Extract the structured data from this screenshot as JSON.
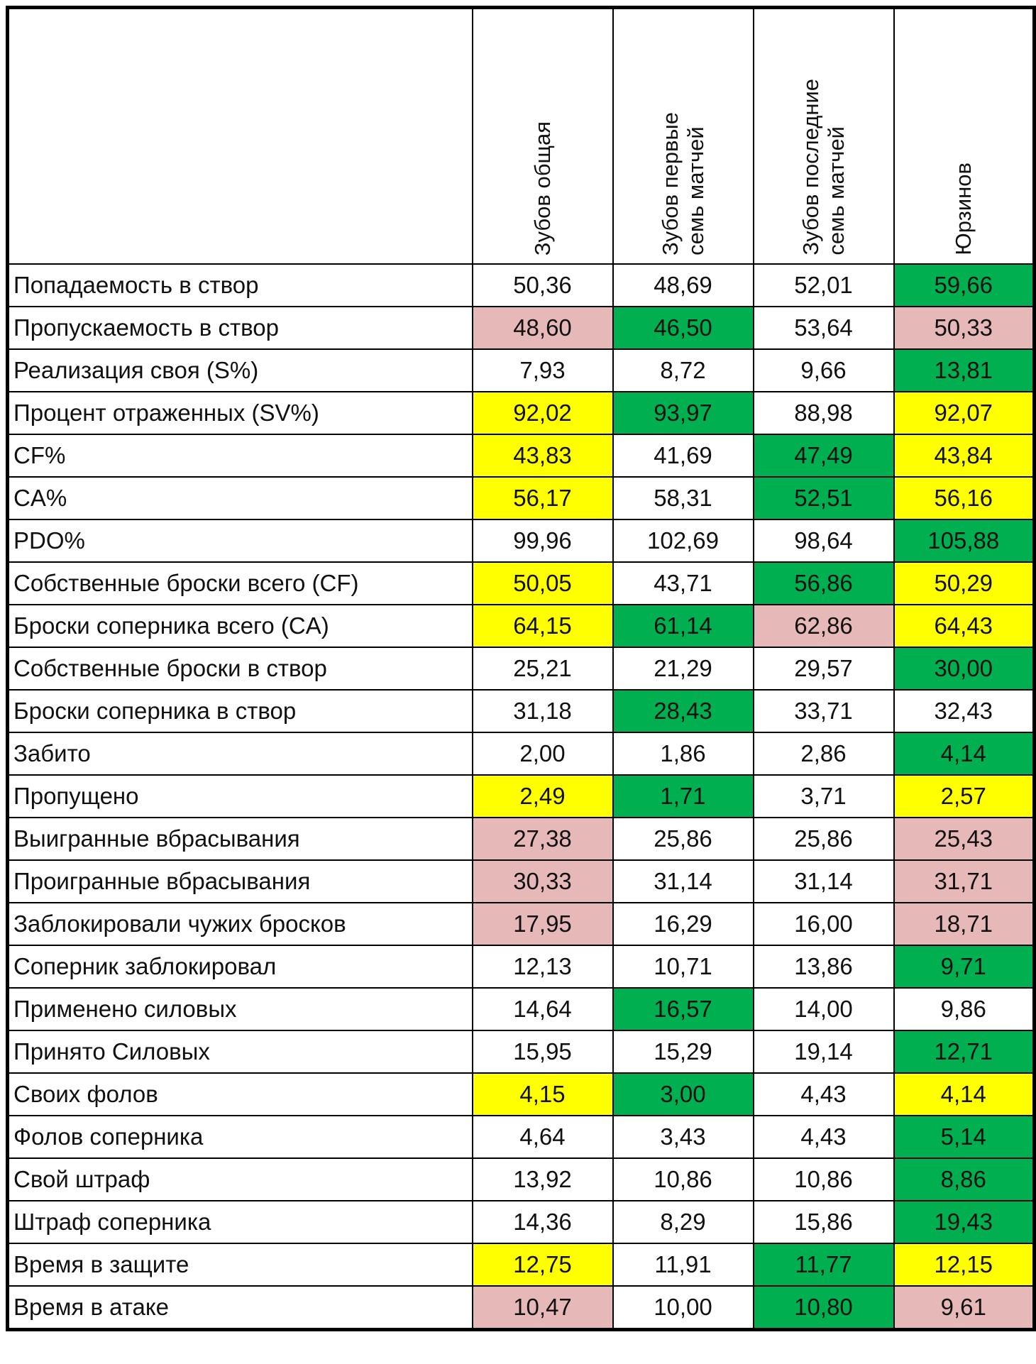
{
  "colors": {
    "g": "#00b050",
    "y": "#ffff00",
    "p": "#e6b8b7"
  },
  "headers": [
    "Зубов общая",
    "Зубов первые\nсемь матчей",
    "Зубов последние\nсемь матчей",
    "Юрзинов"
  ],
  "rows": [
    {
      "label": "Попадаемость в створ",
      "values": [
        "50,36",
        "48,69",
        "52,01",
        "59,66"
      ],
      "fill": [
        "",
        "",
        "",
        "g"
      ]
    },
    {
      "label": "Пропускаемость в створ",
      "values": [
        "48,60",
        "46,50",
        "53,64",
        "50,33"
      ],
      "fill": [
        "p",
        "g",
        "",
        "p"
      ]
    },
    {
      "label": "Реализация своя (S%)",
      "values": [
        "7,93",
        "8,72",
        "9,66",
        "13,81"
      ],
      "fill": [
        "",
        "",
        "",
        "g"
      ]
    },
    {
      "label": "Процент отраженных (SV%)",
      "values": [
        "92,02",
        "93,97",
        "88,98",
        "92,07"
      ],
      "fill": [
        "y",
        "g",
        "",
        "y"
      ]
    },
    {
      "label": "CF%",
      "values": [
        "43,83",
        "41,69",
        "47,49",
        "43,84"
      ],
      "fill": [
        "y",
        "",
        "g",
        "y"
      ]
    },
    {
      "label": "CA%",
      "values": [
        "56,17",
        "58,31",
        "52,51",
        "56,16"
      ],
      "fill": [
        "y",
        "",
        "g",
        "y"
      ]
    },
    {
      "label": "PDO%",
      "values": [
        "99,96",
        "102,69",
        "98,64",
        "105,88"
      ],
      "fill": [
        "",
        "",
        "",
        "g"
      ]
    },
    {
      "label": "Собственные броски всего (CF)",
      "values": [
        "50,05",
        "43,71",
        "56,86",
        "50,29"
      ],
      "fill": [
        "y",
        "",
        "g",
        "y"
      ]
    },
    {
      "label": "Броски соперника всего (CA)",
      "values": [
        "64,15",
        "61,14",
        "62,86",
        "64,43"
      ],
      "fill": [
        "y",
        "g",
        "p",
        "y"
      ]
    },
    {
      "label": "Собственные броски в створ",
      "values": [
        "25,21",
        "21,29",
        "29,57",
        "30,00"
      ],
      "fill": [
        "",
        "",
        "",
        "g"
      ]
    },
    {
      "label": "Броски соперника в створ",
      "values": [
        "31,18",
        "28,43",
        "33,71",
        "32,43"
      ],
      "fill": [
        "",
        "g",
        "",
        ""
      ]
    },
    {
      "label": "Забито",
      "values": [
        "2,00",
        "1,86",
        "2,86",
        "4,14"
      ],
      "fill": [
        "",
        "",
        "",
        "g"
      ]
    },
    {
      "label": "Пропущено",
      "values": [
        "2,49",
        "1,71",
        "3,71",
        "2,57"
      ],
      "fill": [
        "y",
        "g",
        "",
        "y"
      ]
    },
    {
      "label": "Выигранные вбрасывания",
      "values": [
        "27,38",
        "25,86",
        "25,86",
        "25,43"
      ],
      "fill": [
        "p",
        "",
        "",
        "p"
      ]
    },
    {
      "label": "Проигранные вбрасывания",
      "values": [
        "30,33",
        "31,14",
        "31,14",
        "31,71"
      ],
      "fill": [
        "p",
        "",
        "",
        "p"
      ]
    },
    {
      "label": "Заблокировали чужих бросков",
      "values": [
        "17,95",
        "16,29",
        "16,00",
        "18,71"
      ],
      "fill": [
        "p",
        "",
        "",
        "p"
      ]
    },
    {
      "label": "Соперник заблокировал",
      "values": [
        "12,13",
        "10,71",
        "13,86",
        "9,71"
      ],
      "fill": [
        "",
        "",
        "",
        "g"
      ]
    },
    {
      "label": "Применено силовых",
      "values": [
        "14,64",
        "16,57",
        "14,00",
        "9,86"
      ],
      "fill": [
        "",
        "g",
        "",
        ""
      ]
    },
    {
      "label": "Принято Силовых",
      "values": [
        "15,95",
        "15,29",
        "19,14",
        "12,71"
      ],
      "fill": [
        "",
        "",
        "",
        "g"
      ]
    },
    {
      "label": "Своих фолов",
      "values": [
        "4,15",
        "3,00",
        "4,43",
        "4,14"
      ],
      "fill": [
        "y",
        "g",
        "",
        "y"
      ]
    },
    {
      "label": "Фолов соперника",
      "values": [
        "4,64",
        "3,43",
        "4,43",
        "5,14"
      ],
      "fill": [
        "",
        "",
        "",
        "g"
      ]
    },
    {
      "label": "Свой штраф",
      "values": [
        "13,92",
        "10,86",
        "10,86",
        "8,86"
      ],
      "fill": [
        "",
        "",
        "",
        "g"
      ]
    },
    {
      "label": "Штраф соперника",
      "values": [
        "14,36",
        "8,29",
        "15,86",
        "19,43"
      ],
      "fill": [
        "",
        "",
        "",
        "g"
      ]
    },
    {
      "label": "Время в защите",
      "values": [
        "12,75",
        "11,91",
        "11,77",
        "12,15"
      ],
      "fill": [
        "y",
        "",
        "g",
        "y"
      ]
    },
    {
      "label": "Время в атаке",
      "values": [
        "10,47",
        "10,00",
        "10,80",
        "9,61"
      ],
      "fill": [
        "p",
        "",
        "g",
        "p"
      ]
    }
  ]
}
